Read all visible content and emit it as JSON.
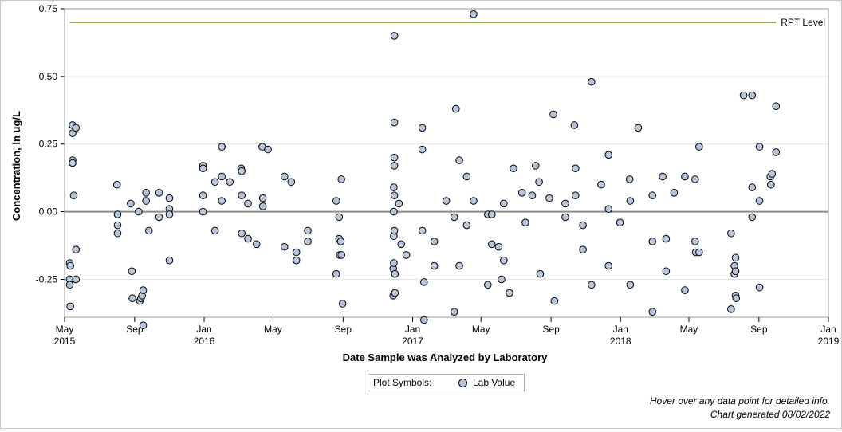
{
  "chart_data": {
    "type": "scatter",
    "xlabel": "Date Sample was Analyzed by Laboratory",
    "ylabel": "Concentration, in ug/L",
    "xlim": [
      "2015-05-01",
      "2019-01-01"
    ],
    "ylim": [
      -0.39,
      0.75
    ],
    "y_ticks": [
      0.75,
      0.5,
      0.25,
      0.0,
      -0.25
    ],
    "y_tick_labels": [
      "0.75",
      "0.50",
      "0.25",
      "0.00",
      "-0.25"
    ],
    "x_ticks": [
      {
        "date": "2015-05-01",
        "label": "May",
        "year": "2015"
      },
      {
        "date": "2015-09-01",
        "label": "Sep",
        "year": ""
      },
      {
        "date": "2016-01-01",
        "label": "Jan",
        "year": "2016"
      },
      {
        "date": "2016-05-01",
        "label": "May",
        "year": ""
      },
      {
        "date": "2016-09-01",
        "label": "Sep",
        "year": ""
      },
      {
        "date": "2017-01-01",
        "label": "Jan",
        "year": "2017"
      },
      {
        "date": "2017-05-01",
        "label": "May",
        "year": ""
      },
      {
        "date": "2017-09-01",
        "label": "Sep",
        "year": ""
      },
      {
        "date": "2018-01-01",
        "label": "Jan",
        "year": "2018"
      },
      {
        "date": "2018-05-01",
        "label": "May",
        "year": ""
      },
      {
        "date": "2018-09-01",
        "label": "Sep",
        "year": ""
      },
      {
        "date": "2019-01-01",
        "label": "Jan",
        "year": "2019"
      }
    ],
    "grid": true,
    "reference_lines": [
      {
        "label": "RPT Level",
        "y": 0.7,
        "x_start": "2015-05-10",
        "x_end": "2018-10-01",
        "color": "#9aaf4c"
      },
      {
        "label": "",
        "y": 0.0,
        "color": "#8c8c8c"
      }
    ],
    "series": [
      {
        "name": "Lab Value",
        "marker_fill": "#b8c6dc",
        "marker_stroke": "#000000",
        "points": [
          {
            "x": "2015-05-10",
            "y": -0.19
          },
          {
            "x": "2015-05-10",
            "y": -0.25
          },
          {
            "x": "2015-05-10",
            "y": -0.27
          },
          {
            "x": "2015-05-11",
            "y": -0.2
          },
          {
            "x": "2015-05-11",
            "y": -0.35
          },
          {
            "x": "2015-05-15",
            "y": 0.32
          },
          {
            "x": "2015-05-15",
            "y": 0.29
          },
          {
            "x": "2015-05-15",
            "y": 0.19
          },
          {
            "x": "2015-05-15",
            "y": 0.18
          },
          {
            "x": "2015-05-17",
            "y": 0.06
          },
          {
            "x": "2015-05-21",
            "y": 0.31
          },
          {
            "x": "2015-05-21",
            "y": -0.14
          },
          {
            "x": "2015-05-21",
            "y": -0.25
          },
          {
            "x": "2015-08-01",
            "y": 0.1
          },
          {
            "x": "2015-08-02",
            "y": -0.01
          },
          {
            "x": "2015-08-02",
            "y": -0.05
          },
          {
            "x": "2015-08-02",
            "y": -0.08
          },
          {
            "x": "2015-08-25",
            "y": 0.03
          },
          {
            "x": "2015-08-27",
            "y": -0.22
          },
          {
            "x": "2015-08-28",
            "y": -0.32
          },
          {
            "x": "2015-09-08",
            "y": 0.0
          },
          {
            "x": "2015-09-10",
            "y": -0.33
          },
          {
            "x": "2015-09-12",
            "y": -0.32
          },
          {
            "x": "2015-09-14",
            "y": -0.31
          },
          {
            "x": "2015-09-16",
            "y": -0.29
          },
          {
            "x": "2015-09-16",
            "y": -0.42
          },
          {
            "x": "2015-09-21",
            "y": 0.07
          },
          {
            "x": "2015-09-21",
            "y": 0.04
          },
          {
            "x": "2015-09-26",
            "y": -0.07
          },
          {
            "x": "2015-10-14",
            "y": 0.07
          },
          {
            "x": "2015-10-14",
            "y": -0.02
          },
          {
            "x": "2015-11-01",
            "y": 0.05
          },
          {
            "x": "2015-11-01",
            "y": 0.01
          },
          {
            "x": "2015-11-01",
            "y": -0.01
          },
          {
            "x": "2015-11-01",
            "y": -0.18
          },
          {
            "x": "2015-12-30",
            "y": 0.17
          },
          {
            "x": "2015-12-30",
            "y": 0.16
          },
          {
            "x": "2015-12-30",
            "y": 0.06
          },
          {
            "x": "2015-12-30",
            "y": 0.0
          },
          {
            "x": "2016-01-20",
            "y": 0.11
          },
          {
            "x": "2016-01-20",
            "y": -0.07
          },
          {
            "x": "2016-02-01",
            "y": 0.24
          },
          {
            "x": "2016-02-01",
            "y": 0.13
          },
          {
            "x": "2016-02-01",
            "y": 0.04
          },
          {
            "x": "2016-02-15",
            "y": 0.11
          },
          {
            "x": "2016-03-06",
            "y": 0.16
          },
          {
            "x": "2016-03-07",
            "y": 0.15
          },
          {
            "x": "2016-03-07",
            "y": 0.06
          },
          {
            "x": "2016-03-07",
            "y": -0.08
          },
          {
            "x": "2016-03-18",
            "y": 0.03
          },
          {
            "x": "2016-03-18",
            "y": -0.1
          },
          {
            "x": "2016-04-02",
            "y": -0.12
          },
          {
            "x": "2016-04-12",
            "y": 0.24
          },
          {
            "x": "2016-04-13",
            "y": 0.05
          },
          {
            "x": "2016-04-13",
            "y": 0.02
          },
          {
            "x": "2016-04-22",
            "y": 0.23
          },
          {
            "x": "2016-05-21",
            "y": 0.13
          },
          {
            "x": "2016-05-21",
            "y": -0.13
          },
          {
            "x": "2016-06-02",
            "y": 0.11
          },
          {
            "x": "2016-06-11",
            "y": -0.15
          },
          {
            "x": "2016-06-11",
            "y": -0.18
          },
          {
            "x": "2016-07-01",
            "y": -0.07
          },
          {
            "x": "2016-07-01",
            "y": -0.11
          },
          {
            "x": "2016-08-20",
            "y": 0.04
          },
          {
            "x": "2016-08-20",
            "y": -0.23
          },
          {
            "x": "2016-08-25",
            "y": -0.02
          },
          {
            "x": "2016-08-25",
            "y": -0.1
          },
          {
            "x": "2016-08-26",
            "y": -0.16
          },
          {
            "x": "2016-08-28",
            "y": -0.11
          },
          {
            "x": "2016-08-29",
            "y": 0.12
          },
          {
            "x": "2016-08-29",
            "y": -0.16
          },
          {
            "x": "2016-08-31",
            "y": -0.34
          },
          {
            "x": "2016-11-28",
            "y": -0.21
          },
          {
            "x": "2016-11-28",
            "y": -0.31
          },
          {
            "x": "2016-11-29",
            "y": 0.09
          },
          {
            "x": "2016-11-29",
            "y": 0.0
          },
          {
            "x": "2016-11-29",
            "y": -0.09
          },
          {
            "x": "2016-11-29",
            "y": -0.19
          },
          {
            "x": "2016-11-30",
            "y": 0.65
          },
          {
            "x": "2016-11-30",
            "y": 0.33
          },
          {
            "x": "2016-11-30",
            "y": 0.2
          },
          {
            "x": "2016-11-30",
            "y": 0.17
          },
          {
            "x": "2016-11-30",
            "y": 0.06
          },
          {
            "x": "2016-11-30",
            "y": -0.07
          },
          {
            "x": "2016-12-01",
            "y": -0.23
          },
          {
            "x": "2016-12-01",
            "y": -0.3
          },
          {
            "x": "2016-12-08",
            "y": 0.03
          },
          {
            "x": "2016-12-12",
            "y": -0.12
          },
          {
            "x": "2016-12-21",
            "y": -0.16
          },
          {
            "x": "2017-01-18",
            "y": 0.31
          },
          {
            "x": "2017-01-18",
            "y": 0.23
          },
          {
            "x": "2017-01-18",
            "y": -0.07
          },
          {
            "x": "2017-01-21",
            "y": -0.26
          },
          {
            "x": "2017-01-21",
            "y": -0.4
          },
          {
            "x": "2017-02-08",
            "y": -0.11
          },
          {
            "x": "2017-02-08",
            "y": -0.2
          },
          {
            "x": "2017-03-01",
            "y": 0.04
          },
          {
            "x": "2017-03-15",
            "y": -0.02
          },
          {
            "x": "2017-03-15",
            "y": -0.37
          },
          {
            "x": "2017-03-18",
            "y": 0.38
          },
          {
            "x": "2017-03-24",
            "y": 0.19
          },
          {
            "x": "2017-03-24",
            "y": -0.2
          },
          {
            "x": "2017-04-06",
            "y": 0.13
          },
          {
            "x": "2017-04-06",
            "y": -0.05
          },
          {
            "x": "2017-04-18",
            "y": 0.73
          },
          {
            "x": "2017-04-18",
            "y": 0.04
          },
          {
            "x": "2017-05-13",
            "y": -0.01
          },
          {
            "x": "2017-05-13",
            "y": -0.27
          },
          {
            "x": "2017-05-20",
            "y": -0.01
          },
          {
            "x": "2017-05-20",
            "y": -0.12
          },
          {
            "x": "2017-06-01",
            "y": -0.13
          },
          {
            "x": "2017-06-06",
            "y": -0.25
          },
          {
            "x": "2017-06-10",
            "y": 0.03
          },
          {
            "x": "2017-06-10",
            "y": -0.18
          },
          {
            "x": "2017-06-20",
            "y": -0.3
          },
          {
            "x": "2017-06-27",
            "y": 0.16
          },
          {
            "x": "2017-07-12",
            "y": 0.07
          },
          {
            "x": "2017-07-18",
            "y": -0.04
          },
          {
            "x": "2017-07-30",
            "y": 0.06
          },
          {
            "x": "2017-08-05",
            "y": 0.17
          },
          {
            "x": "2017-08-11",
            "y": 0.11
          },
          {
            "x": "2017-08-13",
            "y": -0.23
          },
          {
            "x": "2017-08-29",
            "y": 0.05
          },
          {
            "x": "2017-09-05",
            "y": 0.36
          },
          {
            "x": "2017-09-07",
            "y": -0.33
          },
          {
            "x": "2017-09-26",
            "y": 0.03
          },
          {
            "x": "2017-09-26",
            "y": -0.02
          },
          {
            "x": "2017-10-12",
            "y": 0.32
          },
          {
            "x": "2017-10-14",
            "y": 0.16
          },
          {
            "x": "2017-10-14",
            "y": 0.06
          },
          {
            "x": "2017-10-27",
            "y": -0.05
          },
          {
            "x": "2017-10-27",
            "y": -0.14
          },
          {
            "x": "2017-11-11",
            "y": 0.48
          },
          {
            "x": "2017-11-11",
            "y": -0.27
          },
          {
            "x": "2017-11-28",
            "y": 0.1
          },
          {
            "x": "2017-12-11",
            "y": 0.21
          },
          {
            "x": "2017-12-11",
            "y": 0.01
          },
          {
            "x": "2017-12-11",
            "y": -0.2
          },
          {
            "x": "2017-12-31",
            "y": -0.04
          },
          {
            "x": "2018-01-17",
            "y": 0.12
          },
          {
            "x": "2018-01-18",
            "y": 0.04
          },
          {
            "x": "2018-01-18",
            "y": -0.27
          },
          {
            "x": "2018-02-01",
            "y": 0.31
          },
          {
            "x": "2018-02-26",
            "y": 0.06
          },
          {
            "x": "2018-02-26",
            "y": -0.11
          },
          {
            "x": "2018-02-26",
            "y": -0.37
          },
          {
            "x": "2018-03-16",
            "y": 0.13
          },
          {
            "x": "2018-03-22",
            "y": -0.1
          },
          {
            "x": "2018-03-22",
            "y": -0.22
          },
          {
            "x": "2018-04-05",
            "y": 0.07
          },
          {
            "x": "2018-04-24",
            "y": 0.13
          },
          {
            "x": "2018-04-24",
            "y": -0.29
          },
          {
            "x": "2018-05-12",
            "y": 0.12
          },
          {
            "x": "2018-05-12",
            "y": -0.11
          },
          {
            "x": "2018-05-13",
            "y": -0.15
          },
          {
            "x": "2018-05-19",
            "y": 0.24
          },
          {
            "x": "2018-05-19",
            "y": -0.15
          },
          {
            "x": "2018-07-14",
            "y": -0.08
          },
          {
            "x": "2018-07-14",
            "y": -0.36
          },
          {
            "x": "2018-07-20",
            "y": -0.2
          },
          {
            "x": "2018-07-20",
            "y": -0.23
          },
          {
            "x": "2018-07-22",
            "y": -0.17
          },
          {
            "x": "2018-07-22",
            "y": -0.22
          },
          {
            "x": "2018-07-22",
            "y": -0.31
          },
          {
            "x": "2018-07-23",
            "y": -0.32
          },
          {
            "x": "2018-08-05",
            "y": 0.43
          },
          {
            "x": "2018-08-20",
            "y": 0.43
          },
          {
            "x": "2018-08-20",
            "y": 0.09
          },
          {
            "x": "2018-08-20",
            "y": -0.02
          },
          {
            "x": "2018-09-02",
            "y": 0.24
          },
          {
            "x": "2018-09-02",
            "y": 0.04
          },
          {
            "x": "2018-09-02",
            "y": -0.28
          },
          {
            "x": "2018-09-21",
            "y": 0.13
          },
          {
            "x": "2018-09-22",
            "y": 0.1
          },
          {
            "x": "2018-09-24",
            "y": 0.14
          },
          {
            "x": "2018-10-01",
            "y": 0.39
          },
          {
            "x": "2018-10-01",
            "y": 0.22
          }
        ]
      }
    ]
  },
  "legend": {
    "title": "Plot Symbols:",
    "item_label": "Lab Value"
  },
  "footer": {
    "hint": "Hover over any data point for detailed info.",
    "generated": "Chart generated 08/02/2022"
  }
}
